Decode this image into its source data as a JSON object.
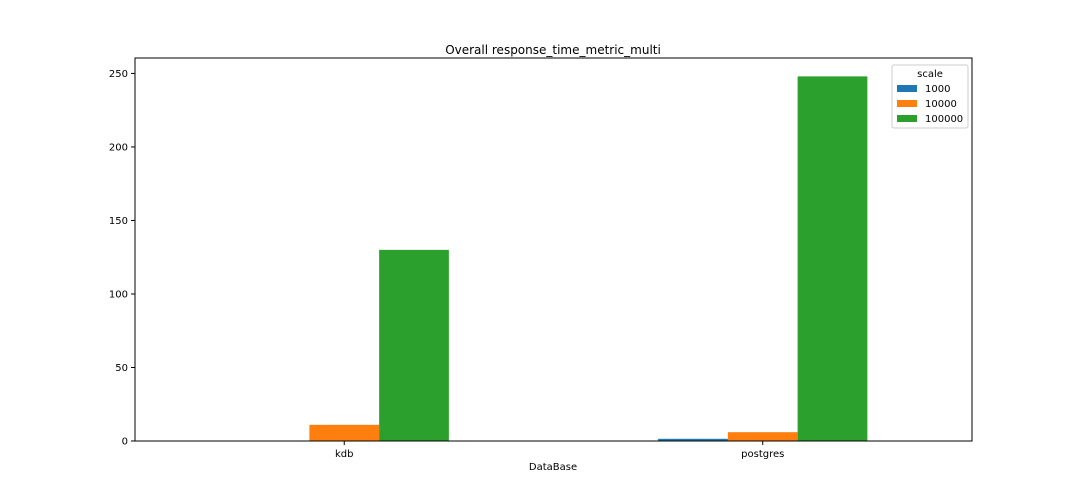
{
  "chart_data": {
    "type": "bar",
    "title": "Overall response_time_metric_multi",
    "xlabel": "DataBase",
    "ylabel": "",
    "categories": [
      "kdb",
      "postgres"
    ],
    "series": [
      {
        "name": "1000",
        "values": [
          0.3,
          1.5
        ],
        "color": "#1f77b4"
      },
      {
        "name": "10000",
        "values": [
          11,
          6
        ],
        "color": "#ff7f0e"
      },
      {
        "name": "100000",
        "values": [
          130,
          248
        ],
        "color": "#2ca02c"
      }
    ],
    "ylim": [
      0,
      260.5
    ],
    "yticks": [
      0,
      50,
      100,
      150,
      200,
      250
    ],
    "legend": {
      "title": "scale",
      "position": "top-right"
    },
    "grid": false
  }
}
